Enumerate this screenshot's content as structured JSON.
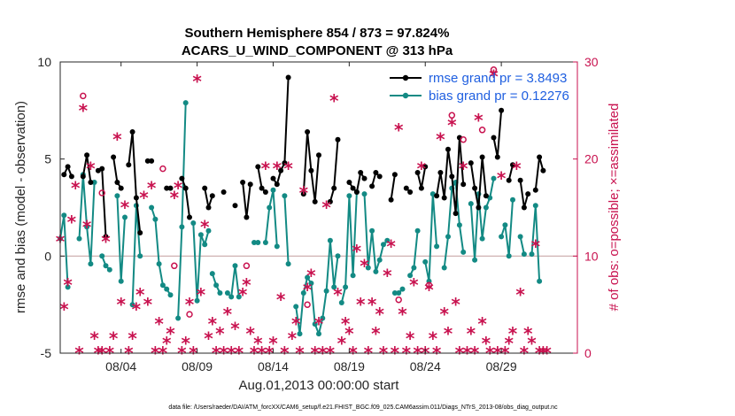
{
  "chart_data": {
    "type": "line",
    "title": [
      "Southern Hemisphere 854 / 873 = 97.824%",
      "ACARS_U_WIND_COMPONENT @ 313 hPa"
    ],
    "xlabel": "Aug.01,2013 00:00:00 start",
    "ylabel": "rmse and bias (model - observation)",
    "ylabel_right": "# of obs: o=possible; ×=assimilated",
    "footnote": "data file: /Users/raeder/DAI/ATM_forcXX/CAM6_setup/f.e21.FHIST_BGC.f09_025.CAM6assim.011/Diags_NTrS_2013-08/obs_diag_output.nc",
    "xlim": [
      0,
      34
    ],
    "ylim": [
      -5,
      10
    ],
    "ylim_right": [
      0,
      30
    ],
    "x_ticks": [
      4,
      9,
      14,
      19,
      24,
      29
    ],
    "x_tick_labels": [
      "08/04",
      "08/09",
      "08/14",
      "08/19",
      "08/24",
      "08/29"
    ],
    "y_ticks": [
      -5,
      0,
      5,
      10
    ],
    "y_tick_labels": [
      "-5",
      "0",
      "5",
      "10"
    ],
    "y_right_ticks": [
      0,
      10,
      20,
      30
    ],
    "y_right_tick_labels": [
      "0",
      "10",
      "20",
      "30"
    ],
    "zero_line": true,
    "legend": [
      {
        "label": "rmse grand pr = 3.8493",
        "color": "#000000"
      },
      {
        "label": "bias grand pr = 0.12276",
        "color": "#138a84"
      }
    ],
    "rmse": [
      [
        [
          0.25,
          4.2
        ],
        [
          0.5,
          4.6
        ],
        [
          0.75,
          4.1
        ]
      ],
      [
        [
          1.5,
          4.1
        ],
        [
          1.75,
          5.2
        ],
        [
          2.0,
          3.8
        ]
      ],
      [
        [
          2.5,
          4.4
        ],
        [
          2.75,
          4.5
        ],
        [
          3.0,
          1.0
        ]
      ],
      [
        [
          3.5,
          5.1
        ],
        [
          3.75,
          3.8
        ],
        [
          4.0,
          3.5
        ]
      ],
      [
        [
          4.5,
          4.7
        ],
        [
          4.75,
          6.4
        ],
        [
          5.0,
          3.0
        ],
        [
          5.25,
          1.2
        ]
      ],
      [
        [
          5.75,
          4.9
        ],
        [
          6.0,
          4.9
        ]
      ],
      [
        [
          7.0,
          3.5
        ],
        [
          7.25,
          3.5
        ]
      ],
      [
        [
          8.0,
          4.0
        ],
        [
          8.25,
          3.5
        ],
        [
          8.5,
          2.0
        ]
      ],
      [
        [
          9.5,
          3.5
        ],
        [
          9.75,
          2.5
        ],
        [
          10.0,
          3.1
        ]
      ],
      [
        [
          10.75,
          3.3
        ]
      ],
      [
        [
          11.5,
          2.6
        ]
      ],
      [
        [
          12.0,
          3.8
        ],
        [
          12.25,
          2.0
        ],
        [
          12.5,
          3.7
        ]
      ],
      [
        [
          13.0,
          4.6
        ],
        [
          13.25,
          3.5
        ],
        [
          13.5,
          3.3
        ]
      ],
      [
        [
          14.0,
          4.0
        ],
        [
          14.25,
          3.7
        ],
        [
          14.5,
          4.4
        ],
        [
          14.75,
          4.8
        ],
        [
          15.0,
          9.2
        ]
      ],
      [
        [
          16.0,
          3.2
        ],
        [
          16.25,
          6.4
        ],
        [
          16.5,
          4.4
        ],
        [
          16.75,
          2.8
        ],
        [
          17.0,
          5.2
        ]
      ],
      [
        [
          17.75,
          2.8
        ],
        [
          18.0,
          3.5
        ],
        [
          18.25,
          6.0
        ]
      ],
      [
        [
          19.0,
          3.8
        ],
        [
          19.25,
          3.5
        ],
        [
          19.5,
          3.3
        ],
        [
          19.75,
          4.3
        ],
        [
          20.0,
          4.0
        ]
      ],
      [
        [
          20.5,
          3.6
        ],
        [
          20.75,
          4.3
        ],
        [
          21.0,
          4.1
        ]
      ],
      [
        [
          21.75,
          2.9
        ],
        [
          22.0,
          4.2
        ]
      ],
      [
        [
          22.75,
          3.5
        ],
        [
          23.0,
          3.3
        ]
      ],
      [
        [
          23.5,
          4.3
        ],
        [
          23.75,
          3.5
        ],
        [
          24.0,
          4.6
        ]
      ],
      [
        [
          24.75,
          3.1
        ],
        [
          25.0,
          4.3
        ],
        [
          25.25,
          3.0
        ],
        [
          25.5,
          5.5
        ],
        [
          25.75,
          4.1
        ],
        [
          26.0,
          2.2
        ],
        [
          26.25,
          6.1
        ],
        [
          26.5,
          3.7
        ]
      ],
      [
        [
          27.0,
          4.8
        ],
        [
          27.25,
          3.5
        ],
        [
          27.5,
          2.5
        ],
        [
          27.75,
          5.1
        ],
        [
          28.0,
          3.1
        ]
      ],
      [
        [
          28.5,
          6.1
        ],
        [
          28.75,
          5.1
        ],
        [
          29.0,
          7.5
        ]
      ],
      [
        [
          29.5,
          3.9
        ],
        [
          29.75,
          4.7
        ]
      ],
      [
        [
          30.25,
          3.9
        ],
        [
          30.5,
          2.5
        ],
        [
          30.75,
          3.2
        ]
      ],
      [
        [
          31.25,
          3.4
        ],
        [
          31.5,
          5.1
        ],
        [
          31.75,
          4.4
        ]
      ]
    ],
    "bias": [
      [
        [
          0.0,
          0.9
        ],
        [
          0.25,
          2.1
        ],
        [
          0.5,
          -1.6
        ]
      ],
      [
        [
          1.25,
          0.9
        ],
        [
          1.5,
          4.2
        ],
        [
          1.75,
          1.5
        ],
        [
          2.0,
          -0.4
        ],
        [
          2.25,
          3.8
        ]
      ],
      [
        [
          2.75,
          0.0
        ],
        [
          3.0,
          -0.5
        ],
        [
          3.25,
          -0.7
        ]
      ],
      [
        [
          3.75,
          3.1
        ],
        [
          4.0,
          -1.3
        ],
        [
          4.25,
          2.0
        ]
      ],
      [
        [
          4.75,
          -2.5
        ],
        [
          5.0,
          2.6
        ],
        [
          5.25,
          0.0
        ]
      ],
      [
        [
          6.0,
          2.5
        ],
        [
          6.25,
          1.9
        ],
        [
          6.5,
          -0.4
        ],
        [
          6.75,
          -1.5
        ],
        [
          7.0,
          -1.7
        ],
        [
          7.25,
          -2.0
        ]
      ],
      [
        [
          7.75,
          -3.2
        ],
        [
          8.0,
          1.5
        ],
        [
          8.25,
          7.9
        ]
      ],
      [
        [
          8.75,
          1.7
        ],
        [
          9.0,
          -2.3
        ],
        [
          9.25,
          1.1
        ],
        [
          9.5,
          0.6
        ],
        [
          9.75,
          1.3
        ]
      ],
      [
        [
          10.0,
          -0.9
        ],
        [
          10.25,
          -1.5
        ],
        [
          10.5,
          -1.9
        ]
      ],
      [
        [
          11.0,
          -1.9
        ],
        [
          11.25,
          -2.1
        ],
        [
          11.5,
          -0.5
        ],
        [
          11.75,
          -2.1
        ]
      ],
      [
        [
          12.75,
          0.7
        ],
        [
          13.0,
          0.7
        ]
      ],
      [
        [
          13.5,
          0.7
        ],
        [
          13.75,
          2.5
        ],
        [
          14.0,
          3.4
        ],
        [
          14.25,
          0.5
        ]
      ],
      [
        [
          14.75,
          3.1
        ],
        [
          15.0,
          -0.4
        ]
      ],
      [
        [
          15.5,
          -2.6
        ],
        [
          15.75,
          -4.0
        ],
        [
          16.0,
          -1.9
        ],
        [
          16.25,
          -1.1
        ],
        [
          16.5,
          -1.4
        ],
        [
          16.75,
          -3.5
        ],
        [
          17.0,
          -4.0
        ],
        [
          17.25,
          -3.2
        ],
        [
          17.5,
          -1.8
        ],
        [
          17.75,
          0.8
        ],
        [
          18.0,
          -1.6
        ],
        [
          18.25,
          0.0
        ]
      ],
      [
        [
          18.5,
          -2.4
        ],
        [
          18.75,
          -1.6
        ],
        [
          19.0,
          3.1
        ],
        [
          19.25,
          -1.0
        ],
        [
          19.5,
          3.3
        ]
      ],
      [
        [
          20.0,
          3.2
        ],
        [
          20.25,
          -0.6
        ],
        [
          20.5,
          1.3
        ],
        [
          20.75,
          -0.8
        ],
        [
          21.0,
          -0.2
        ],
        [
          21.25,
          0.6
        ],
        [
          21.5,
          0.8
        ]
      ],
      [
        [
          22.0,
          -1.9
        ],
        [
          22.25,
          -1.9
        ],
        [
          22.5,
          -1.7
        ]
      ],
      [
        [
          23.0,
          -1.0
        ],
        [
          23.25,
          -0.6
        ],
        [
          23.5,
          1.3
        ]
      ],
      [
        [
          24.0,
          -0.3
        ],
        [
          24.25,
          -1.3
        ],
        [
          24.5,
          3.2
        ],
        [
          24.75,
          0.5
        ]
      ],
      [
        [
          25.25,
          -0.6
        ],
        [
          25.5,
          1.0
        ],
        [
          25.75,
          3.5
        ],
        [
          26.0,
          3.8
        ],
        [
          26.25,
          1.6
        ],
        [
          26.5,
          0.2
        ]
      ],
      [
        [
          27.0,
          2.7
        ],
        [
          27.25,
          -0.2
        ],
        [
          27.5,
          3.2
        ],
        [
          27.75,
          0.9
        ],
        [
          28.0,
          2.5
        ],
        [
          28.25,
          3.0
        ],
        [
          28.5,
          4.0
        ]
      ],
      [
        [
          29.0,
          1.0
        ],
        [
          29.25,
          1.6
        ],
        [
          29.5,
          -0.0
        ],
        [
          29.75,
          2.9
        ]
      ],
      [
        [
          30.25,
          1.0
        ],
        [
          30.5,
          0.1
        ]
      ],
      [
        [
          31.0,
          0.1
        ],
        [
          31.25,
          2.6
        ],
        [
          31.5,
          -1.3
        ]
      ]
    ],
    "obs_possible": [
      [
        1.5,
        26.5
      ],
      [
        2.75,
        16.5
      ],
      [
        6.75,
        19
      ],
      [
        7.5,
        9
      ],
      [
        8.5,
        4
      ],
      [
        12.25,
        9
      ],
      [
        16.25,
        5
      ],
      [
        22.25,
        5.5
      ],
      [
        24.25,
        7
      ],
      [
        25.75,
        24.5
      ],
      [
        26.5,
        22
      ],
      [
        27.75,
        23
      ],
      [
        28.5,
        29.2
      ]
    ],
    "obs_assimilated": [
      [
        0.0,
        11.5
      ],
      [
        0.25,
        4.5
      ],
      [
        0.5,
        7
      ],
      [
        0.75,
        13.5
      ],
      [
        1.0,
        17
      ],
      [
        1.25,
        0
      ],
      [
        1.5,
        25
      ],
      [
        1.75,
        13
      ],
      [
        2.0,
        19
      ],
      [
        2.25,
        1.5
      ],
      [
        2.5,
        0
      ],
      [
        2.75,
        0
      ],
      [
        3.0,
        11.5
      ],
      [
        3.25,
        0
      ],
      [
        3.5,
        1.5
      ],
      [
        3.75,
        22
      ],
      [
        4.0,
        5
      ],
      [
        4.25,
        15
      ],
      [
        4.5,
        0
      ],
      [
        4.75,
        1.5
      ],
      [
        5.0,
        4.5
      ],
      [
        5.25,
        6
      ],
      [
        5.5,
        16
      ],
      [
        5.75,
        5
      ],
      [
        6.0,
        17
      ],
      [
        6.25,
        0
      ],
      [
        6.5,
        3
      ],
      [
        6.75,
        0
      ],
      [
        7.0,
        1
      ],
      [
        7.25,
        2
      ],
      [
        7.5,
        16
      ],
      [
        7.75,
        17
      ],
      [
        8.0,
        0
      ],
      [
        8.25,
        1
      ],
      [
        8.5,
        5
      ],
      [
        8.75,
        0
      ],
      [
        9.0,
        28
      ],
      [
        9.25,
        6
      ],
      [
        9.5,
        13
      ],
      [
        9.75,
        1.5
      ],
      [
        10.0,
        3
      ],
      [
        10.25,
        0
      ],
      [
        10.5,
        2
      ],
      [
        10.75,
        0
      ],
      [
        11.0,
        4
      ],
      [
        11.25,
        0
      ],
      [
        11.5,
        2.5
      ],
      [
        11.75,
        0
      ],
      [
        12.0,
        6
      ],
      [
        12.25,
        7
      ],
      [
        12.5,
        2
      ],
      [
        12.75,
        0
      ],
      [
        13.0,
        1
      ],
      [
        13.25,
        0
      ],
      [
        13.5,
        19
      ],
      [
        13.75,
        0
      ],
      [
        14.0,
        1
      ],
      [
        14.25,
        19
      ],
      [
        14.5,
        5.5
      ],
      [
        14.75,
        0
      ],
      [
        15.0,
        19
      ],
      [
        15.25,
        1.5
      ],
      [
        15.5,
        3
      ],
      [
        15.75,
        0
      ],
      [
        16.0,
        16.5
      ],
      [
        16.25,
        6.5
      ],
      [
        16.5,
        8
      ],
      [
        16.75,
        0
      ],
      [
        17.0,
        3
      ],
      [
        17.25,
        0
      ],
      [
        17.5,
        15
      ],
      [
        17.75,
        0
      ],
      [
        18.0,
        26
      ],
      [
        18.25,
        6
      ],
      [
        18.5,
        1
      ],
      [
        18.75,
        3
      ],
      [
        19.0,
        2
      ],
      [
        19.25,
        0
      ],
      [
        19.5,
        10.5
      ],
      [
        19.75,
        5
      ],
      [
        20.0,
        9
      ],
      [
        20.25,
        0
      ],
      [
        20.5,
        5
      ],
      [
        20.75,
        2
      ],
      [
        21.0,
        4
      ],
      [
        21.25,
        0
      ],
      [
        21.5,
        8
      ],
      [
        21.75,
        11
      ],
      [
        22.0,
        0
      ],
      [
        22.25,
        23
      ],
      [
        22.5,
        4
      ],
      [
        22.75,
        0
      ],
      [
        23.0,
        1.5
      ],
      [
        23.25,
        7
      ],
      [
        23.5,
        0
      ],
      [
        23.75,
        19
      ],
      [
        24.0,
        0
      ],
      [
        24.25,
        6.5
      ],
      [
        24.5,
        1.5
      ],
      [
        24.75,
        0
      ],
      [
        25.0,
        22
      ],
      [
        25.25,
        4
      ],
      [
        25.5,
        2
      ],
      [
        25.75,
        23.5
      ],
      [
        26.0,
        5
      ],
      [
        26.25,
        0
      ],
      [
        26.5,
        19
      ],
      [
        26.75,
        0
      ],
      [
        27.0,
        2
      ],
      [
        27.25,
        0
      ],
      [
        27.5,
        24
      ],
      [
        27.75,
        3
      ],
      [
        28.0,
        1
      ],
      [
        28.25,
        0
      ],
      [
        28.5,
        28.5
      ],
      [
        28.75,
        0
      ],
      [
        29.0,
        18
      ],
      [
        29.25,
        0
      ],
      [
        29.5,
        1
      ],
      [
        29.75,
        2
      ],
      [
        30.0,
        19
      ],
      [
        30.25,
        6
      ],
      [
        30.5,
        0
      ],
      [
        30.75,
        2
      ],
      [
        31.0,
        1
      ],
      [
        31.25,
        11
      ],
      [
        31.5,
        0
      ],
      [
        31.75,
        0
      ],
      [
        32.0,
        0
      ]
    ]
  }
}
